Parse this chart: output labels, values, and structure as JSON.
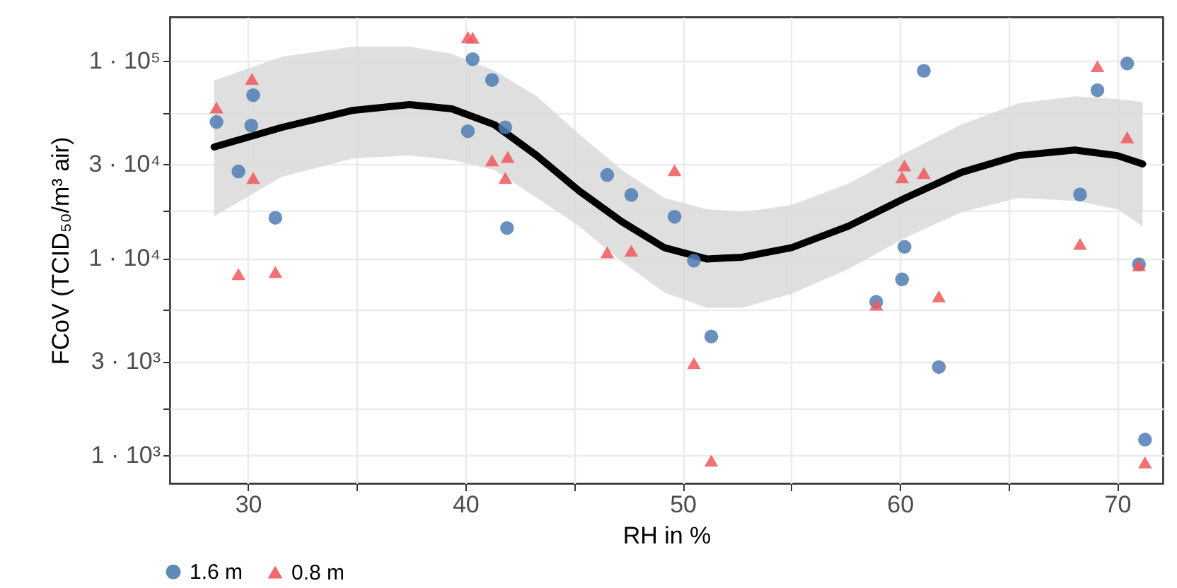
{
  "chart_data": {
    "type": "scatter",
    "xlabel": "RH in %",
    "ylabel": "FCoV (TCID₅₀/m³ air)",
    "log": "y",
    "grid": true,
    "legend": "bottom",
    "xlim": [
      26.4,
      72.1
    ],
    "xticks": [
      30,
      {
        "value": 35,
        "label": null
      },
      40,
      {
        "value": 45,
        "label": null
      },
      50,
      {
        "value": 55,
        "label": null
      },
      60,
      {
        "value": 65,
        "label": null
      },
      70
    ],
    "ylim": [
      720,
      167000
    ],
    "yticks": [
      {
        "value": 1000,
        "label": "1 · 10³"
      },
      {
        "value": 1732,
        "label": null
      },
      {
        "value": 3000,
        "label": "3 · 10³"
      },
      {
        "value": 5477,
        "label": null
      },
      {
        "value": 10000,
        "label": "1 · 10⁴"
      },
      {
        "value": 17320,
        "label": null
      },
      {
        "value": 30000,
        "label": "3 · 10⁴"
      },
      {
        "value": 54772,
        "label": null
      },
      {
        "value": 100000,
        "label": "1 · 10⁵"
      }
    ],
    "series": [
      {
        "type": "line",
        "color": "#000000",
        "x": [
          28.44,
          31.56,
          34.82,
          37.43,
          39.38,
          41.34,
          43.29,
          45.24,
          47.2,
          49.15,
          51.11,
          52.74,
          55.02,
          57.62,
          60.26,
          62.83,
          65.44,
          68.05,
          70.0,
          71.17
        ],
        "values": [
          36600,
          46000,
          56100,
          60000,
          57100,
          47500,
          33100,
          21900,
          15300,
          11300,
          9900,
          10100,
          11300,
          14500,
          20200,
          27200,
          33100,
          35300,
          33100,
          30000
        ],
        "lower": [
          16300,
          25800,
          32000,
          33100,
          31500,
          28000,
          20200,
          14500,
          9600,
          6700,
          5600,
          5600,
          6600,
          8800,
          12700,
          17100,
          20200,
          19500,
          17700,
          14500
        ],
        "upper": [
          79400,
          105000,
          118000,
          118000,
          108600,
          89200,
          66200,
          42400,
          28000,
          20200,
          17700,
          17100,
          18600,
          23800,
          34200,
          47500,
          60900,
          66200,
          64000,
          61900
        ]
      },
      {
        "name": "1.6 m",
        "color": "#4f7db3",
        "marker": "circle",
        "x": [
          28.55,
          30.24,
          30.15,
          29.56,
          31.26,
          40.12,
          40.34,
          41.23,
          41.84,
          41.92,
          46.53,
          47.64,
          49.63,
          50.52,
          51.32,
          58.91,
          60.21,
          60.1,
          61.1,
          61.79,
          68.29,
          69.09,
          70.46,
          71.0,
          71.28
        ],
        "values": [
          49000,
          67000,
          47000,
          27500,
          16000,
          44000,
          102000,
          80000,
          46000,
          14200,
          26400,
          20900,
          16200,
          9700,
          4000,
          6000,
          11400,
          7800,
          89000,
          2800,
          21000,
          71000,
          97000,
          9300,
          1200
        ]
      },
      {
        "name": "0.8 m",
        "color": "#f0585c",
        "marker": "triangle",
        "x": [
          28.55,
          30.18,
          30.24,
          29.56,
          31.26,
          40.12,
          40.34,
          41.23,
          41.95,
          41.84,
          46.53,
          47.64,
          49.63,
          50.52,
          51.32,
          58.91,
          60.1,
          60.21,
          61.1,
          61.79,
          68.29,
          69.09,
          70.46,
          71.0,
          71.28
        ],
        "values": [
          58000,
          81000,
          25500,
          8300,
          8500,
          132000,
          131000,
          31300,
          32600,
          25500,
          10700,
          10900,
          27900,
          2930,
          940,
          5800,
          25700,
          29500,
          27000,
          6400,
          11800,
          94000,
          41000,
          9200,
          920
        ]
      }
    ]
  }
}
